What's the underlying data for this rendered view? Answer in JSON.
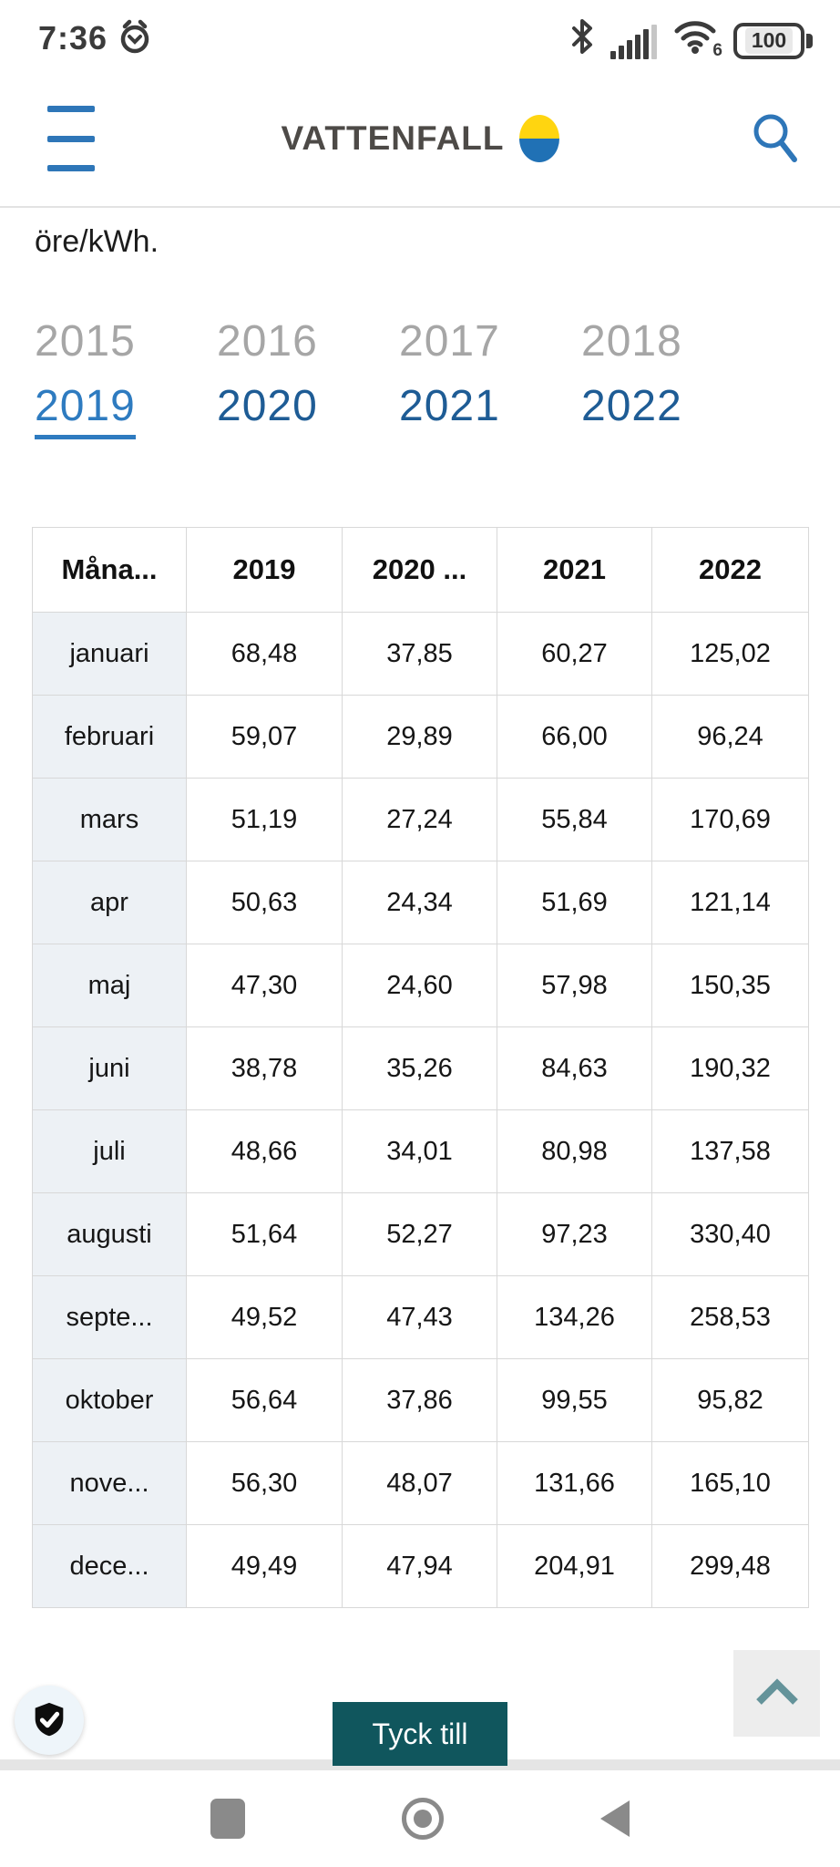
{
  "status_bar": {
    "time": "7:36",
    "battery_level": "100",
    "wifi_generation": "6"
  },
  "header": {
    "brand": "VATTENFALL"
  },
  "page": {
    "unit_text": "öre/kWh."
  },
  "year_nav": {
    "row1": [
      "2015",
      "2016",
      "2017",
      "2018"
    ],
    "row2": [
      "2019",
      "2020",
      "2021",
      "2022"
    ],
    "active_year": "2019"
  },
  "table": {
    "headers": [
      "Måna...",
      "2019",
      "2020 ...",
      "2021",
      "2022"
    ],
    "rows": [
      [
        "januari",
        "68,48",
        "37,85",
        "60,27",
        "125,02"
      ],
      [
        "februari",
        "59,07",
        "29,89",
        "66,00",
        "96,24"
      ],
      [
        "mars",
        "51,19",
        "27,24",
        "55,84",
        "170,69"
      ],
      [
        "apr",
        "50,63",
        "24,34",
        "51,69",
        "121,14"
      ],
      [
        "maj",
        "47,30",
        "24,60",
        "57,98",
        "150,35"
      ],
      [
        "juni",
        "38,78",
        "35,26",
        "84,63",
        "190,32"
      ],
      [
        "juli",
        "48,66",
        "34,01",
        "80,98",
        "137,58"
      ],
      [
        "augusti",
        "51,64",
        "52,27",
        "97,23",
        "330,40"
      ],
      [
        "septe...",
        "49,52",
        "47,43",
        "134,26",
        "258,53"
      ],
      [
        "oktober",
        "56,64",
        "37,86",
        "99,55",
        "95,82"
      ],
      [
        "nove...",
        "56,30",
        "48,07",
        "131,66",
        "165,10"
      ],
      [
        "dece...",
        "49,49",
        "47,94",
        "204,91",
        "299,48"
      ]
    ]
  },
  "feedback": {
    "label": "Tyck till"
  },
  "icons": {
    "menu": "hamburger-icon",
    "search": "search-icon",
    "alarm": "alarm-clock-icon",
    "bluetooth": "bluetooth-icon",
    "signal": "cellular-signal-icon",
    "wifi": "wifi-icon",
    "battery": "battery-icon",
    "privacy": "shield-check-icon",
    "scroll_top": "chevron-up-icon",
    "nav_recents": "recents-square-icon",
    "nav_home": "home-circle-icon",
    "nav_back": "back-triangle-icon"
  },
  "colors": {
    "accent_blue": "#2e7bc0",
    "link_blue": "#1e5c95",
    "inactive_gray": "#a6a6a6",
    "teal": "#10565d",
    "logo_yellow": "#ffd510",
    "logo_blue": "#2071b5",
    "table_border": "#d8d8d8",
    "month_col_bg": "#edf1f5"
  }
}
